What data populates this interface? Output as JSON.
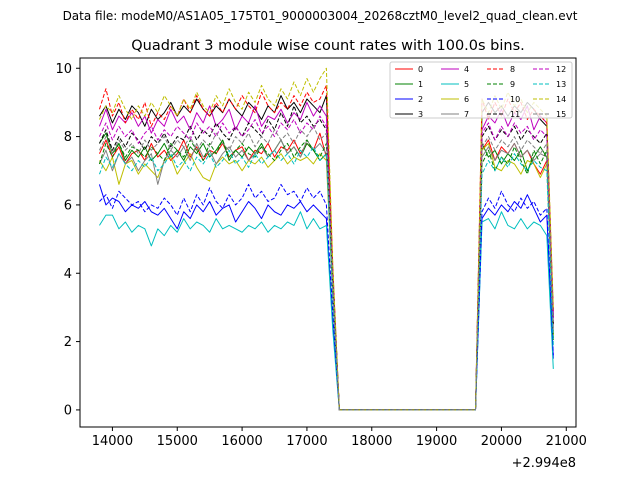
{
  "figure": {
    "suptitle": "Data file: modeM0/AS1A05_175T01_9000003004_20268cztM0_level2_quad_clean.evt",
    "offset_label": "+2.994e8"
  },
  "chart_data": {
    "type": "line",
    "title": "Quadrant 3 module wise count rates with 100.0s bins.",
    "xlabel": "",
    "ylabel": "",
    "x_offset": 299400000,
    "xlim": [
      13500,
      21150
    ],
    "ylim": [
      -0.5,
      10.3
    ],
    "x_ticks": [
      14000,
      15000,
      16000,
      17000,
      18000,
      19000,
      20000,
      21000
    ],
    "x_tick_labels": [
      "14000",
      "15000",
      "16000",
      "17000",
      "18000",
      "19000",
      "20000",
      "21000"
    ],
    "y_ticks": [
      0,
      2,
      4,
      6,
      8,
      10
    ],
    "y_tick_labels": [
      "0",
      "2",
      "4",
      "6",
      "8",
      "10"
    ],
    "grid": false,
    "legend_position": "top-right",
    "x": [
      13800,
      13900,
      14000,
      14100,
      14200,
      14300,
      14400,
      14500,
      14600,
      14700,
      14800,
      14900,
      15000,
      15100,
      15200,
      15300,
      15400,
      15500,
      15600,
      15700,
      15800,
      15900,
      16000,
      16100,
      16200,
      16300,
      16400,
      16500,
      16600,
      16700,
      16800,
      16900,
      17000,
      17100,
      17200,
      17300,
      17400,
      17500,
      17600,
      19600,
      19700,
      19800,
      19900,
      20000,
      20100,
      20200,
      20300,
      20400,
      20500,
      20600,
      20700,
      20800
    ],
    "series": [
      {
        "name": "0",
        "color": "#ff0000",
        "dash": "solid",
        "values": [
          7.5,
          7.9,
          7.4,
          7.7,
          7.2,
          7.5,
          7.6,
          7.3,
          7.8,
          7.4,
          7.6,
          7.3,
          7.5,
          7.9,
          7.4,
          7.7,
          7.3,
          7.6,
          7.5,
          7.8,
          7.4,
          7.6,
          7.7,
          7.3,
          7.6,
          7.5,
          7.8,
          7.4,
          7.7,
          7.6,
          7.9,
          7.5,
          7.8,
          7.6,
          8.1,
          7.4,
          3.5,
          0,
          0,
          0,
          7.6,
          7.9,
          7.3,
          7.7,
          7.5,
          7.8,
          7.4,
          7.6,
          7.2,
          6.9,
          7.3,
          2.5
        ]
      },
      {
        "name": "1",
        "color": "#008000",
        "dash": "solid",
        "values": [
          7.8,
          8.1,
          7.5,
          7.8,
          7.3,
          7.6,
          7.4,
          7.7,
          7.3,
          7.5,
          7.8,
          7.4,
          7.6,
          7.3,
          7.7,
          7.5,
          7.8,
          7.4,
          7.6,
          7.9,
          7.3,
          7.6,
          7.4,
          7.7,
          7.5,
          7.8,
          7.4,
          7.6,
          7.9,
          7.5,
          7.7,
          7.4,
          7.8,
          7.6,
          7.3,
          7.5,
          3.6,
          0,
          0,
          0,
          7.8,
          7.4,
          7.6,
          7.2,
          7.5,
          7.3,
          7.6,
          7.0,
          7.4,
          7.7,
          7.4,
          2.1
        ]
      },
      {
        "name": "2",
        "color": "#0000ff",
        "dash": "solid",
        "values": [
          6.6,
          6.0,
          6.2,
          6.1,
          5.8,
          6.0,
          5.9,
          6.1,
          5.8,
          5.7,
          5.9,
          5.6,
          5.3,
          5.8,
          5.6,
          6.0,
          5.8,
          6.1,
          5.7,
          5.9,
          6.0,
          5.5,
          5.8,
          6.1,
          5.9,
          5.6,
          6.0,
          5.8,
          5.7,
          6.0,
          5.9,
          6.1,
          5.8,
          6.0,
          5.8,
          5.6,
          2.5,
          0,
          0,
          0,
          5.6,
          5.9,
          5.7,
          6.0,
          5.8,
          6.1,
          5.9,
          6.3,
          5.9,
          5.5,
          5.7,
          1.5
        ]
      },
      {
        "name": "3",
        "color": "#000000",
        "dash": "solid",
        "values": [
          8.6,
          8.9,
          8.4,
          8.8,
          8.5,
          8.9,
          8.7,
          8.3,
          8.8,
          8.5,
          8.7,
          9.0,
          8.6,
          8.9,
          8.7,
          9.1,
          8.8,
          8.6,
          8.9,
          8.7,
          9.1,
          8.8,
          8.6,
          9.0,
          8.8,
          8.5,
          8.9,
          8.7,
          9.2,
          8.8,
          9.0,
          8.7,
          9.1,
          8.9,
          8.7,
          9.2,
          4.0,
          0,
          0,
          0,
          8.7,
          9.0,
          8.7,
          8.9,
          8.6,
          8.9,
          8.7,
          9.0,
          8.8,
          8.5,
          8.3,
          2.7
        ]
      },
      {
        "name": "4",
        "color": "#bf00bf",
        "dash": "solid",
        "values": [
          8.3,
          8.8,
          8.2,
          8.6,
          8.4,
          8.7,
          8.3,
          8.6,
          8.1,
          8.5,
          8.3,
          8.8,
          8.4,
          8.6,
          8.2,
          8.7,
          8.4,
          8.9,
          8.3,
          8.5,
          8.8,
          8.2,
          8.6,
          8.4,
          8.9,
          8.3,
          8.6,
          8.5,
          8.8,
          8.4,
          8.7,
          8.5,
          9.0,
          8.6,
          8.9,
          8.6,
          3.9,
          0,
          0,
          0,
          8.2,
          8.6,
          8.4,
          8.8,
          8.3,
          8.7,
          8.5,
          8.9,
          8.2,
          8.6,
          8.4,
          2.8
        ]
      },
      {
        "name": "5",
        "color": "#00bfbf",
        "dash": "solid",
        "values": [
          5.4,
          5.7,
          5.7,
          5.3,
          5.5,
          5.2,
          5.4,
          5.3,
          4.8,
          5.3,
          5.1,
          5.4,
          5.2,
          5.6,
          5.3,
          5.5,
          5.4,
          5.2,
          5.6,
          5.3,
          5.4,
          5.3,
          5.2,
          5.4,
          5.3,
          5.5,
          5.2,
          5.4,
          5.3,
          5.5,
          5.4,
          5.8,
          5.3,
          5.6,
          5.3,
          5.4,
          2.3,
          0,
          0,
          0,
          5.5,
          5.6,
          5.3,
          5.8,
          5.4,
          5.3,
          5.6,
          5.3,
          5.5,
          5.4,
          5.1,
          1.2
        ]
      },
      {
        "name": "6",
        "color": "#bfbf00",
        "dash": "solid",
        "values": [
          7.3,
          7.0,
          7.4,
          6.6,
          7.2,
          7.3,
          6.9,
          7.2,
          7.0,
          6.8,
          7.3,
          7.4,
          6.9,
          7.2,
          7.5,
          7.1,
          6.8,
          6.7,
          7.2,
          7.4,
          7.2,
          7.3,
          7.0,
          7.3,
          7.2,
          7.4,
          7.1,
          7.3,
          7.5,
          7.2,
          7.4,
          7.3,
          7.4,
          7.2,
          7.5,
          7.3,
          3.2,
          0,
          0,
          0,
          7.6,
          7.8,
          7.1,
          7.0,
          7.3,
          7.2,
          6.9,
          7.3,
          7.2,
          6.8,
          7.2,
          2.2
        ]
      },
      {
        "name": "7",
        "color": "#808080",
        "dash": "solid",
        "values": [
          7.2,
          7.6,
          7.0,
          7.5,
          7.2,
          7.4,
          7.0,
          7.3,
          7.5,
          6.6,
          7.3,
          7.6,
          7.4,
          7.7,
          7.3,
          7.8,
          7.4,
          7.6,
          7.2,
          7.5,
          7.7,
          7.4,
          7.6,
          7.3,
          7.5,
          7.7,
          7.4,
          7.6,
          7.9,
          7.5,
          7.7,
          7.4,
          7.9,
          7.6,
          7.8,
          7.5,
          3.4,
          0,
          0,
          0,
          7.4,
          7.7,
          7.3,
          7.6,
          7.5,
          7.8,
          7.4,
          7.6,
          7.3,
          7.5,
          7.4,
          2.3
        ]
      },
      {
        "name": "8",
        "color": "#ff0000",
        "dash": "dash",
        "values": [
          8.8,
          9.4,
          8.6,
          9.0,
          8.4,
          8.8,
          8.5,
          9.0,
          8.3,
          8.7,
          8.5,
          8.9,
          8.6,
          9.1,
          8.7,
          9.2,
          8.8,
          8.6,
          9.0,
          8.7,
          9.1,
          8.8,
          9.2,
          8.9,
          8.7,
          9.3,
          8.9,
          8.7,
          9.0,
          8.8,
          9.2,
          8.9,
          9.3,
          9.0,
          9.1,
          9.5,
          4.1,
          0,
          0,
          0,
          9.1,
          8.5,
          9.0,
          8.6,
          9.1,
          8.7,
          9.0,
          8.5,
          8.8,
          8.6,
          8.4,
          2.9
        ]
      },
      {
        "name": "9",
        "color": "#008000",
        "dash": "dash",
        "values": [
          7.2,
          7.8,
          7.4,
          7.8,
          7.4,
          7.7,
          7.6,
          7.4,
          7.7,
          7.5,
          7.3,
          7.8,
          7.6,
          7.4,
          7.9,
          7.6,
          7.3,
          7.8,
          7.5,
          7.9,
          7.4,
          7.6,
          7.8,
          7.5,
          7.4,
          7.7,
          7.5,
          7.3,
          7.6,
          7.8,
          7.4,
          7.7,
          7.9,
          7.6,
          7.4,
          7.8,
          3.5,
          0,
          0,
          0,
          7.2,
          7.6,
          7.0,
          7.4,
          7.2,
          7.7,
          7.3,
          6.9,
          7.6,
          7.2,
          7.6,
          2.0
        ]
      },
      {
        "name": "10",
        "color": "#0000ff",
        "dash": "dash",
        "values": [
          6.1,
          6.3,
          5.9,
          6.4,
          6.2,
          6.0,
          6.1,
          5.8,
          6.0,
          5.9,
          6.2,
          6.0,
          5.7,
          6.2,
          5.8,
          6.3,
          6.0,
          6.5,
          6.1,
          5.9,
          6.3,
          6.0,
          6.2,
          6.6,
          6.2,
          6.4,
          6.1,
          6.2,
          6.6,
          6.3,
          6.4,
          6.1,
          6.5,
          6.2,
          6.4,
          6.0,
          2.8,
          0,
          0,
          0,
          5.8,
          6.2,
          5.9,
          6.4,
          6.0,
          5.8,
          6.2,
          5.9,
          6.1,
          5.7,
          5.9,
          1.6
        ]
      },
      {
        "name": "11",
        "color": "#000000",
        "dash": "dash",
        "values": [
          7.8,
          8.2,
          7.6,
          8.0,
          7.7,
          8.1,
          7.9,
          7.6,
          8.0,
          7.8,
          8.1,
          7.7,
          8.0,
          7.9,
          8.3,
          7.9,
          8.2,
          8.0,
          8.4,
          8.1,
          7.9,
          8.3,
          8.0,
          8.4,
          8.2,
          8.0,
          8.5,
          8.2,
          8.7,
          8.3,
          8.9,
          8.4,
          8.6,
          8.3,
          8.5,
          8.2,
          3.8,
          0,
          0,
          0,
          8.0,
          8.3,
          7.9,
          8.2,
          8.0,
          8.3,
          7.9,
          8.2,
          8.0,
          7.8,
          8.1,
          2.5
        ]
      },
      {
        "name": "12",
        "color": "#bf00bf",
        "dash": "dash",
        "values": [
          8.0,
          8.4,
          7.9,
          8.3,
          8.0,
          8.2,
          7.8,
          8.1,
          8.3,
          7.9,
          8.2,
          8.0,
          8.3,
          8.1,
          7.9,
          8.4,
          8.1,
          8.3,
          8.0,
          8.4,
          8.1,
          8.3,
          8.0,
          8.2,
          8.5,
          8.1,
          8.3,
          8.0,
          8.4,
          8.2,
          8.5,
          8.1,
          8.4,
          8.2,
          8.6,
          8.3,
          3.7,
          0,
          0,
          0,
          8.1,
          8.4,
          7.9,
          8.3,
          8.0,
          8.4,
          8.1,
          8.3,
          7.9,
          8.2,
          8.0,
          2.6
        ]
      },
      {
        "name": "13",
        "color": "#00bfbf",
        "dash": "dash",
        "values": [
          6.9,
          7.4,
          7.1,
          7.5,
          7.2,
          7.0,
          7.3,
          7.1,
          7.4,
          7.0,
          7.2,
          7.5,
          7.1,
          7.3,
          7.0,
          7.4,
          7.2,
          7.5,
          7.1,
          7.3,
          7.6,
          7.2,
          7.4,
          7.1,
          7.5,
          7.2,
          7.4,
          7.6,
          7.3,
          7.5,
          7.2,
          7.6,
          7.4,
          7.7,
          7.3,
          7.5,
          3.3,
          0,
          0,
          0,
          6.9,
          7.3,
          7.0,
          7.4,
          7.1,
          7.5,
          7.2,
          7.0,
          7.3,
          7.1,
          7.0,
          1.9
        ]
      },
      {
        "name": "14",
        "color": "#bfbf00",
        "dash": "dash",
        "values": [
          8.5,
          8.9,
          8.7,
          9.2,
          8.8,
          8.5,
          8.9,
          8.6,
          9.0,
          8.7,
          9.2,
          8.9,
          8.6,
          9.1,
          8.8,
          9.3,
          8.9,
          8.7,
          9.2,
          8.9,
          9.4,
          9.0,
          8.8,
          9.3,
          9.0,
          9.5,
          9.1,
          8.9,
          9.4,
          9.1,
          9.6,
          9.2,
          9.7,
          9.3,
          9.7,
          10.0,
          4.2,
          0,
          0,
          0,
          9.1,
          8.7,
          9.2,
          8.8,
          9.3,
          8.9,
          9.1,
          8.7,
          9.0,
          8.8,
          8.6,
          3.0
        ]
      },
      {
        "name": "15",
        "color": "#808080",
        "dash": "dash",
        "values": [
          7.6,
          8.0,
          7.5,
          7.9,
          7.6,
          7.8,
          7.5,
          7.9,
          7.6,
          7.8,
          8.0,
          7.6,
          7.9,
          7.7,
          8.0,
          7.6,
          7.9,
          7.7,
          8.1,
          7.8,
          7.6,
          8.0,
          7.8,
          8.1,
          7.7,
          8.0,
          7.8,
          8.2,
          7.9,
          8.1,
          7.8,
          8.2,
          8.0,
          8.3,
          7.9,
          8.1,
          3.6,
          0,
          0,
          0,
          7.7,
          8.0,
          7.6,
          7.9,
          7.7,
          8.0,
          7.6,
          7.9,
          7.7,
          7.5,
          7.8,
          2.4
        ]
      }
    ]
  }
}
